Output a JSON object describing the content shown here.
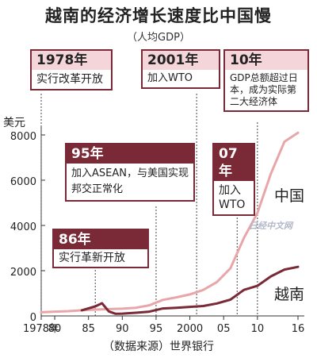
{
  "chart_data": {
    "type": "line",
    "title": "越南的经济增长速度比中国慢",
    "subtitle": "（人均GDP）",
    "ylabel": "美元",
    "source": "（数据来源）世界银行",
    "ylim": [
      0,
      8000
    ],
    "xlim": [
      1978,
      2016
    ],
    "y_ticks": [
      "0",
      "2000",
      "4000",
      "6000",
      "8000"
    ],
    "x_ticks": [
      {
        "v": 1978,
        "label": "1978年"
      },
      {
        "v": 1980,
        "label": "80"
      },
      {
        "v": 1985,
        "label": "85"
      },
      {
        "v": 1990,
        "label": "90"
      },
      {
        "v": 1995,
        "label": "95"
      },
      {
        "v": 2000,
        "label": "2000"
      },
      {
        "v": 2005,
        "label": "05"
      },
      {
        "v": 2010,
        "label": "10"
      },
      {
        "v": 2016,
        "label": "16"
      }
    ],
    "series": [
      {
        "name": "中国",
        "color": "#e8a6a9",
        "x": [
          1978,
          1980,
          1982,
          1984,
          1986,
          1988,
          1990,
          1992,
          1994,
          1996,
          1998,
          2000,
          2002,
          2004,
          2006,
          2008,
          2010,
          2012,
          2014,
          2016
        ],
        "y": [
          160,
          190,
          210,
          250,
          280,
          300,
          320,
          360,
          470,
          710,
          820,
          950,
          1150,
          1500,
          2100,
          3450,
          4550,
          6300,
          7700,
          8100
        ]
      },
      {
        "name": "越南",
        "color": "#7a2a36",
        "x": [
          1984,
          1986,
          1987,
          1988,
          1989,
          1990,
          1992,
          1994,
          1996,
          1998,
          2000,
          2002,
          2004,
          2006,
          2008,
          2010,
          2012,
          2014,
          2016
        ],
        "y": [
          250,
          420,
          560,
          200,
          95,
          100,
          140,
          190,
          330,
          360,
          400,
          440,
          550,
          720,
          1150,
          1330,
          1750,
          2050,
          2170
        ]
      }
    ],
    "annotations": [
      {
        "year": "1978年",
        "text": "实行改革开放"
      },
      {
        "year": "2001年",
        "text": "加入WTO"
      },
      {
        "year": "10年",
        "text": "GDP总额超过日本，成为实际第二大经济体"
      },
      {
        "year": "95年",
        "text": "加入ASEAN，与美国实现邦交正常化"
      },
      {
        "year": "07年",
        "text": "加入WTO"
      },
      {
        "year": "86年",
        "text": "实行革新开放"
      }
    ],
    "watermark": "日经中文网"
  }
}
